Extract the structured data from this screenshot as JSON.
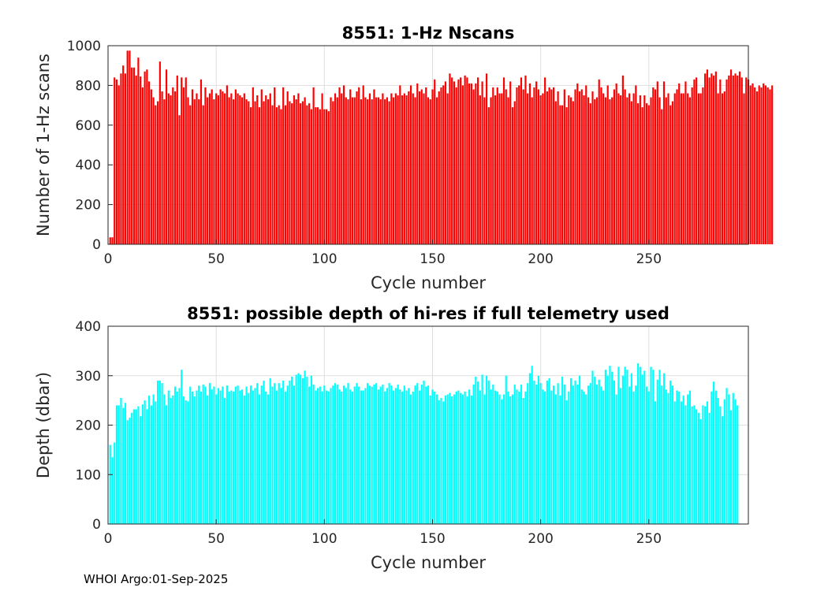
{
  "footer": "WHOI Argo:01-Sep-2025",
  "chart_data": [
    {
      "type": "bar",
      "title": "8551: 1-Hz Nscans",
      "xlabel": "Cycle number",
      "ylabel": "Number of 1-Hz scans",
      "xlim": [
        0,
        296
      ],
      "ylim": [
        0,
        1000
      ],
      "xticks": [
        0,
        50,
        100,
        150,
        200,
        250
      ],
      "yticks": [
        0,
        200,
        400,
        600,
        800,
        1000
      ],
      "grid": true,
      "color": "#ff0000",
      "x_start": 1,
      "values": [
        35,
        35,
        840,
        830,
        800,
        860,
        900,
        860,
        975,
        975,
        890,
        890,
        850,
        940,
        845,
        790,
        870,
        880,
        820,
        780,
        740,
        700,
        720,
        920,
        770,
        730,
        880,
        760,
        750,
        790,
        770,
        850,
        650,
        840,
        790,
        840,
        740,
        700,
        780,
        730,
        760,
        730,
        830,
        700,
        790,
        740,
        760,
        780,
        730,
        760,
        750,
        780,
        770,
        760,
        800,
        740,
        760,
        730,
        780,
        760,
        750,
        740,
        760,
        730,
        720,
        690,
        790,
        720,
        750,
        690,
        780,
        720,
        750,
        730,
        760,
        700,
        790,
        690,
        700,
        680,
        790,
        700,
        770,
        720,
        710,
        750,
        730,
        760,
        710,
        720,
        740,
        700,
        710,
        680,
        790,
        690,
        690,
        680,
        760,
        680,
        680,
        670,
        740,
        720,
        760,
        740,
        790,
        760,
        800,
        740,
        730,
        780,
        740,
        740,
        770,
        790,
        730,
        800,
        740,
        730,
        760,
        730,
        780,
        740,
        740,
        730,
        760,
        730,
        740,
        720,
        760,
        740,
        760,
        750,
        800,
        750,
        760,
        750,
        770,
        800,
        760,
        740,
        810,
        770,
        780,
        760,
        790,
        740,
        730,
        780,
        830,
        740,
        770,
        790,
        800,
        820,
        760,
        860,
        840,
        820,
        790,
        830,
        840,
        800,
        850,
        840,
        810,
        810,
        780,
        810,
        840,
        750,
        820,
        740,
        860,
        690,
        740,
        790,
        750,
        790,
        760,
        760,
        840,
        780,
        740,
        820,
        690,
        720,
        790,
        800,
        840,
        780,
        850,
        760,
        810,
        740,
        790,
        820,
        780,
        750,
        760,
        840,
        770,
        790,
        780,
        790,
        720,
        770,
        700,
        700,
        780,
        690,
        750,
        740,
        720,
        780,
        810,
        770,
        780,
        750,
        800,
        740,
        710,
        770,
        730,
        740,
        830,
        790,
        760,
        740,
        800,
        730,
        740,
        780,
        810,
        760,
        750,
        850,
        780,
        740,
        760,
        720,
        760,
        800,
        710,
        750,
        690,
        750,
        710,
        700,
        740,
        790,
        780,
        820,
        740,
        680,
        820,
        740,
        760,
        700,
        720,
        760,
        780,
        810,
        760,
        760,
        820,
        760,
        740,
        790,
        830,
        840,
        760,
        760,
        790,
        860,
        880,
        840,
        860,
        850,
        870,
        760,
        830,
        760,
        770,
        830,
        850,
        880,
        850,
        860,
        850,
        870,
        840,
        760,
        840,
        830,
        800,
        810,
        790,
        770,
        800,
        790,
        810,
        800,
        790,
        780,
        800
      ]
    },
    {
      "type": "bar",
      "title": "8551: possible depth of hi-res if full telemetry used",
      "xlabel": "Cycle number",
      "ylabel": "Depth (dbar)",
      "xlim": [
        0,
        296
      ],
      "ylim": [
        0,
        400
      ],
      "xticks": [
        0,
        50,
        100,
        150,
        200,
        250
      ],
      "yticks": [
        0,
        100,
        200,
        300,
        400
      ],
      "grid": true,
      "color": "#00ffff",
      "x_start": 1,
      "values": [
        160,
        135,
        165,
        240,
        240,
        255,
        235,
        245,
        210,
        215,
        225,
        232,
        232,
        238,
        218,
        242,
        250,
        232,
        260,
        240,
        262,
        248,
        290,
        290,
        285,
        262,
        240,
        270,
        255,
        260,
        278,
        268,
        275,
        312,
        258,
        250,
        248,
        278,
        268,
        258,
        270,
        280,
        268,
        282,
        278,
        260,
        285,
        272,
        278,
        262,
        275,
        270,
        278,
        255,
        280,
        268,
        270,
        268,
        278,
        280,
        270,
        272,
        260,
        278,
        265,
        280,
        270,
        275,
        285,
        262,
        280,
        290,
        268,
        262,
        295,
        278,
        285,
        270,
        285,
        275,
        290,
        268,
        280,
        290,
        298,
        280,
        302,
        305,
        302,
        295,
        310,
        298,
        278,
        300,
        282,
        270,
        275,
        278,
        268,
        280,
        270,
        268,
        275,
        280,
        285,
        282,
        272,
        268,
        280,
        275,
        285,
        272,
        268,
        278,
        285,
        278,
        270,
        270,
        275,
        285,
        280,
        278,
        282,
        285,
        272,
        278,
        282,
        268,
        275,
        285,
        280,
        270,
        275,
        282,
        272,
        268,
        280,
        270,
        275,
        262,
        268,
        280,
        285,
        270,
        282,
        290,
        278,
        280,
        260,
        272,
        268,
        262,
        250,
        255,
        248,
        260,
        262,
        265,
        258,
        262,
        268,
        270,
        265,
        262,
        268,
        258,
        272,
        260,
        282,
        298,
        288,
        270,
        302,
        262,
        300,
        290,
        272,
        282,
        270,
        268,
        262,
        252,
        262,
        300,
        268,
        258,
        262,
        282,
        272,
        268,
        282,
        255,
        268,
        285,
        305,
        320,
        290,
        282,
        300,
        285,
        272,
        268,
        290,
        295,
        270,
        280,
        262,
        285,
        260,
        298,
        282,
        250,
        268,
        295,
        280,
        290,
        282,
        300,
        272,
        268,
        262,
        280,
        285,
        310,
        298,
        282,
        292,
        278,
        270,
        312,
        300,
        320,
        308,
        290,
        262,
        318,
        275,
        300,
        318,
        312,
        278,
        305,
        268,
        280,
        325,
        318,
        302,
        310,
        278,
        268,
        318,
        312,
        248,
        292,
        312,
        280,
        305,
        272,
        265,
        290,
        280,
        248,
        270,
        268,
        248,
        260,
        240,
        262,
        270,
        238,
        240,
        232,
        225,
        212,
        240,
        238,
        248,
        225,
        268,
        288,
        270,
        255,
        238,
        218,
        252,
        275,
        262,
        230,
        265,
        252,
        240
      ]
    }
  ]
}
